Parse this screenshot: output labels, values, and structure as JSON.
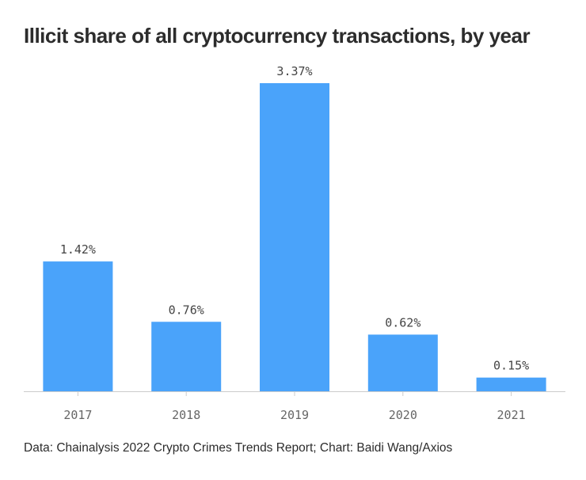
{
  "title": "Illicit share of all cryptocurrency transactions, by year",
  "source": "Data: Chainalysis 2022 Crypto Crimes Trends Report; Chart: Baidi Wang/Axios",
  "colors": {
    "bar": "#4aa3fa",
    "axis": "#cccccc",
    "label": "#444444",
    "tick": "#666666"
  },
  "chart_data": {
    "type": "bar",
    "categories": [
      "2017",
      "2018",
      "2019",
      "2020",
      "2021"
    ],
    "values": [
      1.42,
      0.76,
      3.37,
      0.62,
      0.15
    ],
    "value_labels": [
      "1.42%",
      "0.76%",
      "3.37%",
      "0.62%",
      "0.15%"
    ],
    "title": "Illicit share of all cryptocurrency transactions, by year",
    "xlabel": "",
    "ylabel": "",
    "ylim": [
      0,
      3.37
    ],
    "grid": false,
    "legend": "none"
  }
}
